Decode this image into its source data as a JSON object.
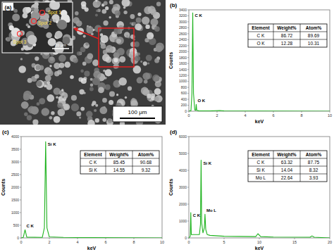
{
  "image_panel": {
    "label": "(a)",
    "spots": [
      "Spot 1",
      "Spot 2",
      "Spot 3"
    ],
    "inset_scale_bar": "20 μm",
    "scale_bar": "100 μm"
  },
  "chart_data": [
    {
      "type": "line",
      "panel": "(b)",
      "x_label": "keV",
      "y_label": "Counts",
      "color": "#1fb31f",
      "x": [
        0,
        0.15,
        0.22,
        0.277,
        0.33,
        0.42,
        0.49,
        0.525,
        0.56,
        0.7,
        1.5,
        2.2,
        2.5,
        3,
        5,
        10
      ],
      "values": [
        0,
        20,
        600,
        3300,
        600,
        40,
        30,
        230,
        30,
        15,
        10,
        25,
        10,
        5,
        5,
        0
      ],
      "xlim": [
        0,
        10
      ],
      "xticks": [
        0,
        2,
        4,
        6,
        8,
        10
      ],
      "ylim": [
        0,
        3400
      ],
      "yticks": [
        0,
        200,
        400,
        600,
        800,
        1000,
        1200,
        1400,
        1600,
        1800,
        2000,
        2200,
        2400,
        2600,
        2800,
        3000,
        3200,
        3400
      ],
      "annotations": [
        {
          "text": "C K",
          "x": 0.277
        },
        {
          "text": "O K",
          "x": 0.525
        }
      ],
      "table": {
        "columns": [
          "Element",
          "Weight%",
          "Atom%"
        ],
        "rows": [
          [
            "C K",
            86.72,
            89.69
          ],
          [
            "O K",
            12.28,
            10.31
          ]
        ]
      }
    },
    {
      "type": "line",
      "panel": "(c)",
      "x_label": "keV",
      "y_label": "Counts",
      "color": "#1fb31f",
      "x": [
        0,
        0.15,
        0.277,
        0.4,
        1.5,
        1.65,
        1.74,
        1.83,
        2,
        3,
        5,
        10
      ],
      "values": [
        0,
        20,
        320,
        30,
        20,
        400,
        3800,
        400,
        40,
        20,
        10,
        0
      ],
      "xlim": [
        0,
        10
      ],
      "xticks": [
        0,
        2,
        4,
        6,
        8,
        10
      ],
      "ylim": [
        0,
        4000
      ],
      "yticks": [
        0,
        500,
        1000,
        1500,
        2000,
        2500,
        3000,
        3500,
        4000
      ],
      "annotations": [
        {
          "text": "C K",
          "x": 0.277
        },
        {
          "text": "Si K",
          "x": 1.74
        }
      ],
      "table": {
        "columns": [
          "Element",
          "Weight%",
          "Atom%"
        ],
        "rows": [
          [
            "C K",
            85.45,
            90.68
          ],
          [
            "Si K",
            14.55,
            9.32
          ]
        ]
      }
    },
    {
      "type": "line",
      "panel": "(d)",
      "x_label": "keV",
      "y_label": "Counts",
      "color": "#1fb31f",
      "x": [
        0,
        0.2,
        0.277,
        0.35,
        1.5,
        1.65,
        1.74,
        1.82,
        2.0,
        2.2,
        2.29,
        2.4,
        2.6,
        3,
        5,
        9.5,
        9.8,
        10.2,
        12,
        17.2,
        17.48,
        17.8,
        20
      ],
      "values": [
        0,
        100,
        1500,
        200,
        200,
        800,
        4600,
        900,
        300,
        600,
        1400,
        500,
        200,
        150,
        100,
        80,
        250,
        80,
        50,
        40,
        120,
        40,
        0
      ],
      "xlim": [
        0,
        20
      ],
      "xticks": [
        0,
        5,
        10,
        15,
        20
      ],
      "ylim": [
        0,
        6000
      ],
      "yticks": [
        0,
        1000,
        2000,
        3000,
        4000,
        5000,
        6000
      ],
      "annotations": [
        {
          "text": "C K",
          "x": 0.277
        },
        {
          "text": "Si K",
          "x": 1.74
        },
        {
          "text": "Mo L",
          "x": 2.29
        }
      ],
      "table": {
        "columns": [
          "Element",
          "Weight%",
          "Atom%"
        ],
        "rows": [
          [
            "C K",
            63.32,
            87.75
          ],
          [
            "Si K",
            14.04,
            8.32
          ],
          [
            "Mo L",
            22.64,
            3.93
          ]
        ]
      }
    }
  ]
}
